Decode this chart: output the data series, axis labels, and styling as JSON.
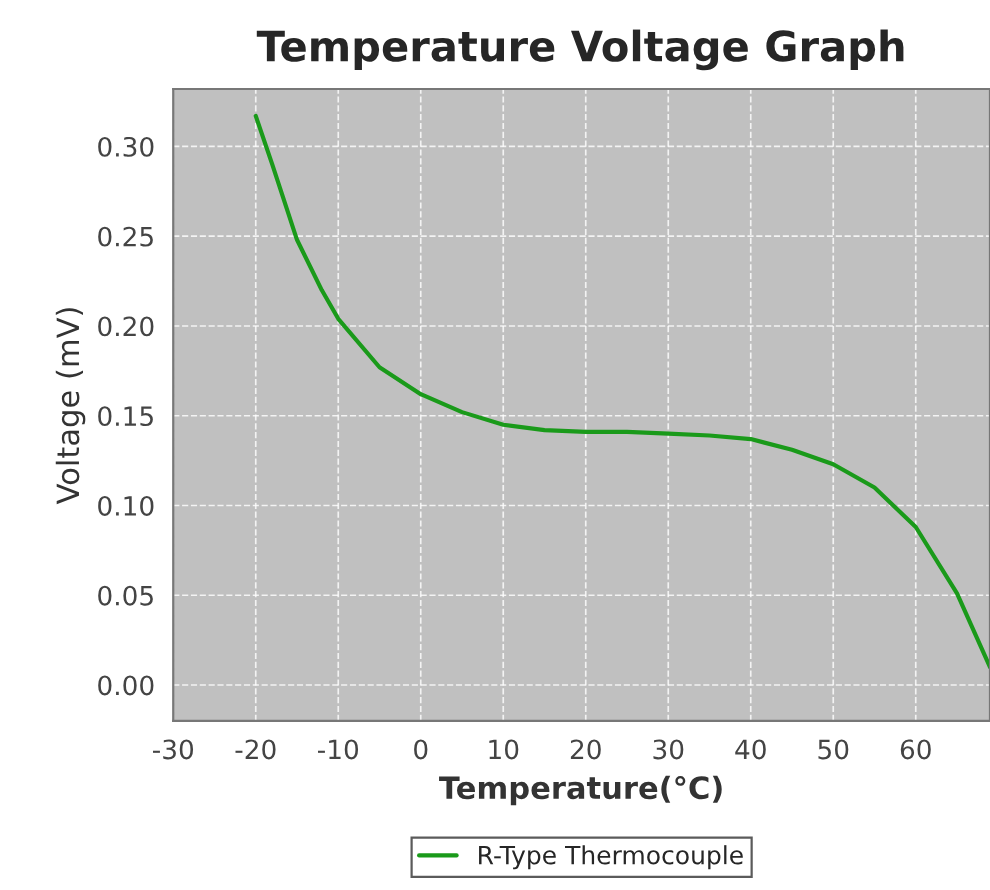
{
  "chart_data": {
    "type": "line",
    "title": "Temperature Voltage Graph",
    "xlabel": "Temperature(°C)",
    "ylabel": "Voltage (mV)",
    "x": [
      -20,
      -18,
      -15,
      -12,
      -10,
      -5,
      0,
      5,
      10,
      15,
      20,
      25,
      30,
      35,
      40,
      45,
      50,
      55,
      60,
      65,
      69
    ],
    "series": [
      {
        "name": "R-Type Thermocouple",
        "color": "#1a9a1a",
        "values": [
          0.317,
          0.29,
          0.248,
          0.22,
          0.204,
          0.177,
          0.162,
          0.152,
          0.145,
          0.142,
          0.141,
          0.141,
          0.14,
          0.139,
          0.137,
          0.131,
          0.123,
          0.11,
          0.088,
          0.051,
          0.01
        ]
      }
    ],
    "xlim": [
      -30,
      69
    ],
    "ylim": [
      -0.02,
      0.332
    ],
    "xticks": [
      -30,
      -20,
      -10,
      0,
      10,
      20,
      30,
      40,
      50,
      60
    ],
    "yticks": [
      {
        "value": 0,
        "label": "0.00"
      },
      {
        "value": 0.05,
        "label": "0.05"
      },
      {
        "value": 0.1,
        "label": "0.10"
      },
      {
        "value": 0.15,
        "label": "0.15"
      },
      {
        "value": 0.2,
        "label": "0.20"
      },
      {
        "value": 0.25,
        "label": "0.25"
      },
      {
        "value": 0.3,
        "label": "0.30"
      }
    ],
    "grid": true,
    "legend": "bottom",
    "marker": "none",
    "line_style": "solid"
  }
}
